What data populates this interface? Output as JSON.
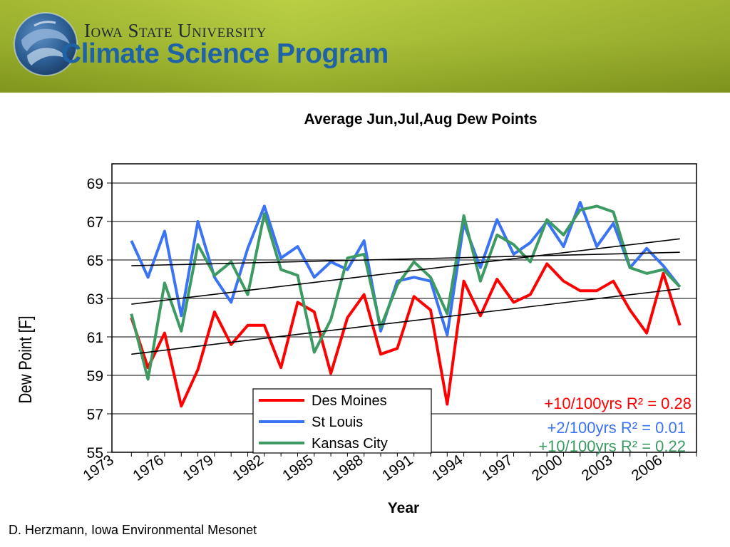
{
  "header": {
    "university": "Iowa State University",
    "program": "Climate Science Program"
  },
  "footer": {
    "credit": "D. Herzmann, Iowa Environmental Mesonet"
  },
  "colors": {
    "des_moines": "#ff0000",
    "st_louis": "#3b73f5",
    "kansas_city": "#3c9a62",
    "trend": "#000000"
  },
  "chart_data": {
    "type": "line",
    "title": "Average Jun,Jul,Aug Dew Points",
    "xlabel": "Year",
    "ylabel": "Dew Point [F]",
    "ylim": [
      55,
      70
    ],
    "yticks": [
      55,
      57,
      59,
      61,
      63,
      65,
      67,
      69
    ],
    "xticks": [
      "1973",
      "1976",
      "1979",
      "1982",
      "1985",
      "1988",
      "1991",
      "1994",
      "1997",
      "2000",
      "2003",
      "2006"
    ],
    "grid": "horizontal",
    "legend_position": "bottom-left",
    "x": [
      1974,
      1975,
      1976,
      1977,
      1978,
      1979,
      1980,
      1981,
      1982,
      1983,
      1984,
      1985,
      1986,
      1987,
      1988,
      1989,
      1990,
      1991,
      1992,
      1993,
      1994,
      1995,
      1996,
      1997,
      1998,
      1999,
      2000,
      2001,
      2002,
      2003,
      2004,
      2005,
      2006,
      2007
    ],
    "series": [
      {
        "name": "Des Moines",
        "color": "#ff0000",
        "values": [
          62.0,
          59.4,
          61.2,
          57.4,
          59.3,
          62.3,
          60.6,
          61.6,
          61.6,
          59.4,
          62.8,
          62.3,
          59.1,
          62.0,
          63.2,
          60.1,
          60.4,
          63.1,
          62.4,
          57.5,
          63.9,
          62.1,
          64.0,
          62.8,
          63.2,
          64.8,
          63.9,
          63.4,
          63.4,
          63.9,
          62.4,
          61.2,
          64.3,
          61.6
        ],
        "trend": [
          60.1,
          63.5
        ],
        "annotation": "+10/100yrs R² = 0.28"
      },
      {
        "name": "St Louis",
        "color": "#3b73f5",
        "values": [
          66.0,
          64.1,
          66.5,
          62.1,
          67.0,
          64.1,
          62.8,
          65.6,
          67.8,
          65.1,
          65.7,
          64.1,
          64.9,
          64.5,
          66.0,
          61.3,
          63.9,
          64.1,
          63.9,
          61.1,
          66.9,
          64.6,
          67.1,
          65.3,
          65.9,
          67.0,
          65.7,
          68.0,
          65.7,
          66.9,
          64.6,
          65.6,
          64.7,
          63.6
        ],
        "trend": [
          64.7,
          65.4
        ],
        "annotation": "+2/100yrs R² = 0.01"
      },
      {
        "name": "Kansas City",
        "color": "#3c9a62",
        "values": [
          62.2,
          58.8,
          63.8,
          61.3,
          65.8,
          64.2,
          64.9,
          63.2,
          67.4,
          64.5,
          64.2,
          60.2,
          61.9,
          65.1,
          65.3,
          61.5,
          63.7,
          64.9,
          64.1,
          62.2,
          67.3,
          63.9,
          66.3,
          65.8,
          64.9,
          67.1,
          66.3,
          67.6,
          67.8,
          67.5,
          64.6,
          64.3,
          64.5,
          63.6
        ],
        "trend": [
          62.7,
          66.1
        ],
        "annotation": "+10/100yrs R² = 0.22"
      }
    ]
  }
}
